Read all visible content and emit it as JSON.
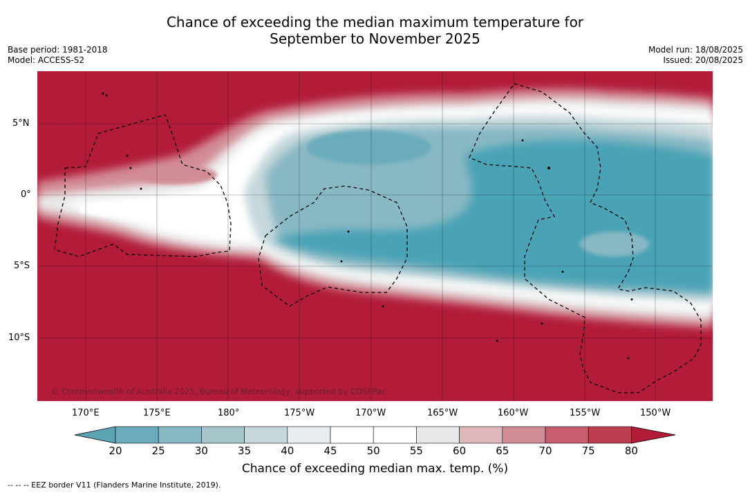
{
  "title_line1": "Chance of exceeding the median maximum temperature for",
  "title_line2": "September to November 2025",
  "meta_left": {
    "line1": "Base period: 1981-2018",
    "line2": "Model: ACCESS-S2"
  },
  "meta_right": {
    "line1": "Model run: 18/08/2025",
    "line2": "Issued: 20/08/2025"
  },
  "copyright": "© Commonwealth of Australia 2025, Bureau of Meteorology, supported by COSPPac",
  "lat_labels": [
    "5°N",
    "0°",
    "5°S",
    "10°S"
  ],
  "lon_labels": [
    "170°E",
    "175°E",
    "180°",
    "175°W",
    "170°W",
    "165°W",
    "160°W",
    "155°W",
    "150°W"
  ],
  "colorbar": {
    "ticks": [
      "20",
      "25",
      "30",
      "35",
      "40",
      "45",
      "50",
      "55",
      "60",
      "65",
      "70",
      "75",
      "80"
    ],
    "colors": [
      "#5aa4b4",
      "#6aacbb",
      "#88b8c4",
      "#a6c6cc",
      "#c6d8dc",
      "#e8eeef",
      "#ffffff",
      "#ffffff",
      "#e8e8e8",
      "#deb7bd",
      "#d28c96",
      "#c65e6e",
      "#bc3e50",
      "#b21c38"
    ],
    "label": "Chance of exceeding median max. temp. (%)"
  },
  "footnote": "-- -- -- EEZ border V11 (Flanders Marine Institute, 2019).",
  "colors": {
    "hot": "#b21c38",
    "cool": "#4aa3b5",
    "white": "#ffffff"
  }
}
